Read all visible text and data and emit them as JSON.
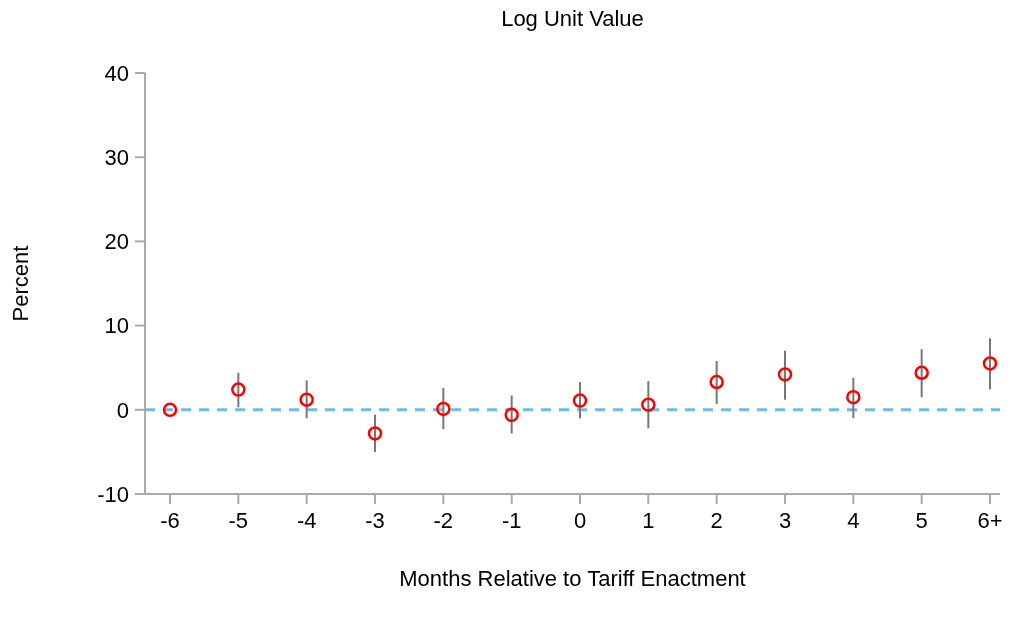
{
  "chart_data": {
    "type": "scatter",
    "title": "Log Unit Value",
    "xlabel": "Months Relative to Tariff Enactment",
    "ylabel": "Percent",
    "categories": [
      "-6",
      "-5",
      "-4",
      "-3",
      "-2",
      "-1",
      "0",
      "1",
      "2",
      "3",
      "4",
      "5",
      "6+"
    ],
    "values": [
      0,
      2.4,
      1.2,
      -2.8,
      0.1,
      -0.6,
      1.1,
      0.6,
      3.3,
      4.2,
      1.5,
      4.4,
      5.5
    ],
    "errors": [
      null,
      [
        0.3,
        4.4
      ],
      [
        -1.0,
        3.5
      ],
      [
        -5.0,
        -0.6
      ],
      [
        -2.3,
        2.6
      ],
      [
        -2.8,
        1.7
      ],
      [
        -1.0,
        3.3
      ],
      [
        -2.2,
        3.4
      ],
      [
        0.7,
        5.8
      ],
      [
        1.2,
        7.0
      ],
      [
        -1.0,
        3.8
      ],
      [
        1.5,
        7.2
      ],
      [
        2.4,
        8.5
      ]
    ],
    "color": "#ff0000",
    "marker": "circle",
    "ylim": [
      -10,
      40
    ],
    "yticks": [
      -10,
      0,
      10,
      20,
      30,
      40
    ],
    "grid": false,
    "ref_lines": [
      {
        "axis": "y",
        "value": 0,
        "color": "#6bbcee",
        "line_style": "dashed"
      }
    ]
  }
}
